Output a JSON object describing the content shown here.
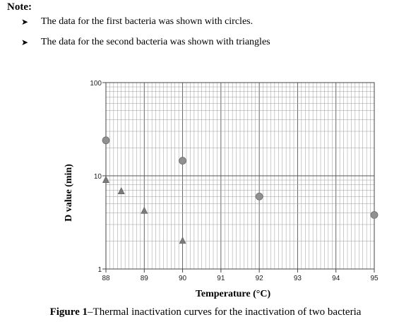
{
  "note": {
    "title": "Note:",
    "bullets": [
      "The data for the first bacteria was shown with circles.",
      "The data for the second bacteria was shown with triangles"
    ],
    "bullet_icon": "arrow-bullet-icon"
  },
  "chart_data": {
    "type": "scatter",
    "xlabel": "Temperature (°C)",
    "ylabel": "D value (min)",
    "xlim": [
      88,
      95
    ],
    "ylim": [
      1,
      100
    ],
    "yscale": "log",
    "x_ticks": [
      "88",
      "89",
      "90",
      "91",
      "92",
      "93",
      "94",
      "95"
    ],
    "y_ticks": [
      "1",
      "10",
      "100"
    ],
    "grid": true,
    "series": [
      {
        "marker": "circle",
        "color": "#909090",
        "points": [
          {
            "x": 88,
            "y": 24
          },
          {
            "x": 90,
            "y": 14.5
          },
          {
            "x": 92,
            "y": 6
          },
          {
            "x": 95,
            "y": 3.8
          }
        ]
      },
      {
        "marker": "triangle",
        "color": "#7a7a7a",
        "points": [
          {
            "x": 88,
            "y": 9
          },
          {
            "x": 88.4,
            "y": 6.8
          },
          {
            "x": 89,
            "y": 4.2
          },
          {
            "x": 90,
            "y": 2
          }
        ]
      }
    ]
  },
  "caption": {
    "label": "Figure 1",
    "text": "–Thermal inactivation curves for the inactivation of two bacteria"
  }
}
